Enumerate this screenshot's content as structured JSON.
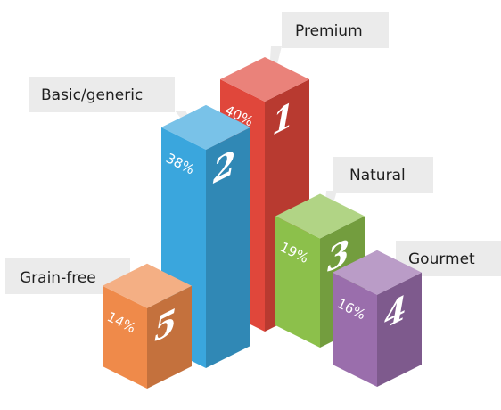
{
  "chart_data": {
    "type": "bar",
    "title": "",
    "xlabel": "",
    "ylabel": "",
    "unit": "%",
    "ylim": [
      0,
      40
    ],
    "grid": false,
    "legend": "none",
    "bars": [
      {
        "category": "Premium",
        "rank": "1",
        "value": 40,
        "value_label": "40%",
        "color": "#e0473b"
      },
      {
        "category": "Basic/generic",
        "rank": "2",
        "value": 38,
        "value_label": "38%",
        "color": "#3aa6dd"
      },
      {
        "category": "Natural",
        "rank": "3",
        "value": 19,
        "value_label": "19%",
        "color": "#8cc04b"
      },
      {
        "category": "Gourmet",
        "rank": "4",
        "value": 16,
        "value_label": "16%",
        "color": "#9a6eac"
      },
      {
        "category": "Grain-free",
        "rank": "5",
        "value": 14,
        "value_label": "14%",
        "color": "#ef8a4a"
      }
    ],
    "callout_color": "#ebebeb",
    "text_color": "#1e1e1e"
  }
}
